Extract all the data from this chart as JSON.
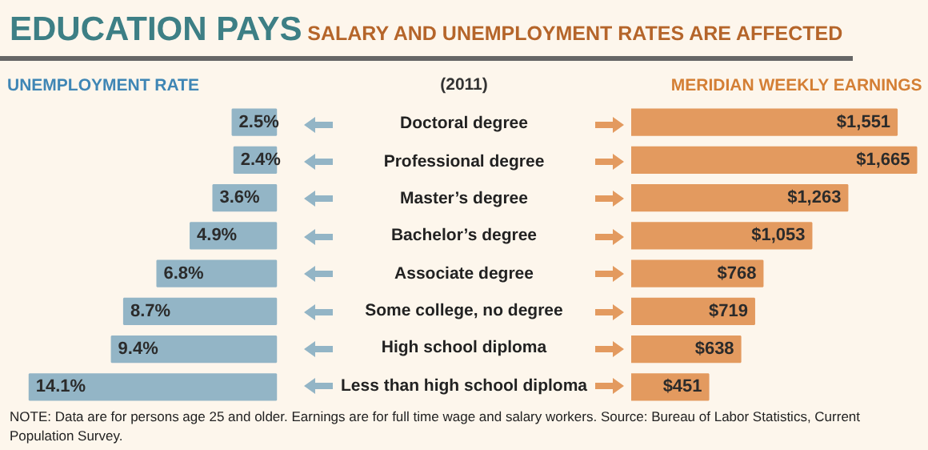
{
  "chart_data": [
    {
      "type": "bar",
      "orientation": "horizontal",
      "title": "EDUCATION PAYS",
      "subtitle": "SALARY AND UNEMPLOYMENT RATES ARE AFFECTED",
      "xlabel": "UNEMPLOYMENT RATE",
      "annotations": [
        "(2011)"
      ],
      "tick_labels": "y",
      "categories": [
        "Doctoral degree",
        "Professional degree",
        "Master’s degree",
        "Bachelor’s degree",
        "Associate degree",
        "Some college, no degree",
        "High school diploma",
        "Less than high school diploma"
      ],
      "color": "#93b5c6",
      "values": [
        2.5,
        2.4,
        3.6,
        4.9,
        6.8,
        8.7,
        9.4,
        14.1
      ],
      "value_labels": [
        "2.5%",
        "2.4%",
        "3.6%",
        "4.9%",
        "6.8%",
        "8.7%",
        "9.4%",
        "14.1%"
      ]
    },
    {
      "type": "bar",
      "orientation": "horizontal",
      "xlabel": "MERIDIAN WEEKLY EARNINGS",
      "annotations": [
        "NOTE: Data are for persons age 25 and older. Earnings are for full time wage and salary workers. Source: Bureau of Labor Statistics, Current Population Survey."
      ],
      "tick_labels": false,
      "categories": [
        "Doctoral degree",
        "Professional degree",
        "Master’s degree",
        "Bachelor’s degree",
        "Associate degree",
        "Some college, no degree",
        "High school diploma",
        "Less than high school diploma"
      ],
      "xlim": [
        0,
        1700
      ],
      "color": "#e39a5f",
      "values": [
        1551,
        1665,
        1263,
        1053,
        768,
        719,
        638,
        451
      ],
      "value_labels": [
        "$1,551",
        "$1,665",
        "$1,263",
        "$1,053",
        "$768",
        "$719",
        "$638",
        "$451"
      ]
    }
  ]
}
